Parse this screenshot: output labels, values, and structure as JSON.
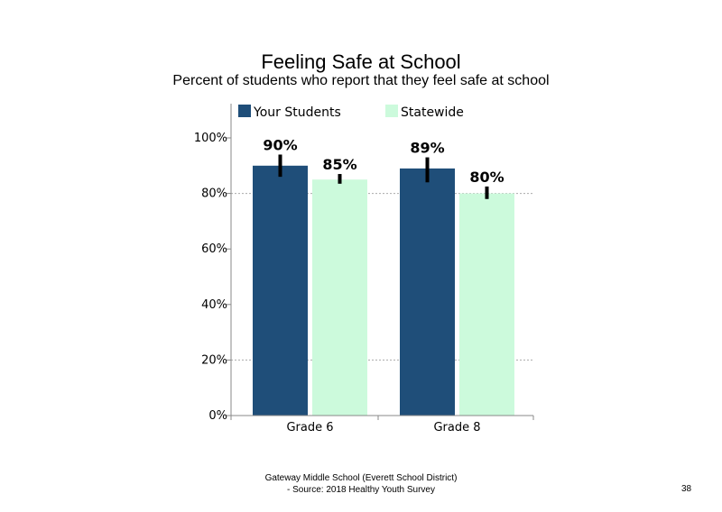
{
  "chart_data": {
    "type": "bar",
    "title": "Feeling  Safe at School",
    "subtitle": "Percent of students who report that they feel safe at school",
    "categories": [
      "Grade 6",
      "Grade 8"
    ],
    "series": [
      {
        "name": "Your Students",
        "color": "#1f4e79",
        "values": [
          90,
          89
        ],
        "labels": [
          "90%",
          "89%"
        ],
        "error": [
          [
            86,
            94
          ],
          [
            84,
            93
          ]
        ]
      },
      {
        "name": "Statewide",
        "color": "#ccfadc",
        "values": [
          85,
          80
        ],
        "labels": [
          "85%",
          "80%"
        ],
        "error": [
          [
            83.5,
            87
          ],
          [
            78,
            82.5
          ]
        ]
      }
    ],
    "yticks": [
      "0%",
      "20%",
      "40%",
      "60%",
      "80%",
      "100%"
    ],
    "ylim": [
      0,
      100
    ],
    "grid": "dotted at 20% and 80%",
    "legend": "top"
  },
  "footer": {
    "line1": "Gateway Middle  School  (Everett School District)",
    "line2": "- Source: 2018 Healthy  Youth Survey"
  },
  "page_number": "38"
}
